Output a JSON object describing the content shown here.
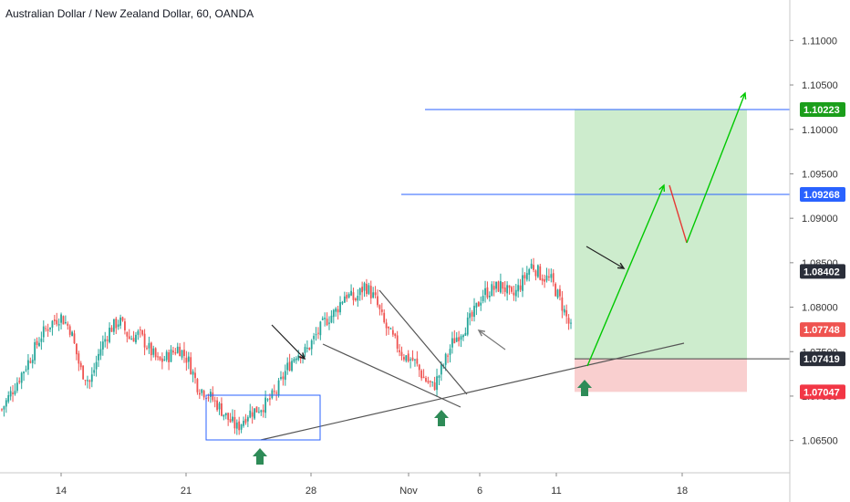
{
  "title": "Australian Dollar / New Zealand Dollar, 60, OANDA",
  "chart_data": {
    "type": "candlestick",
    "symbol": "AUDNZD",
    "timeframe": "60",
    "source": "OANDA",
    "x_tick_labels": [
      "14",
      "21",
      "28",
      "Nov",
      "6",
      "11",
      "18"
    ],
    "y_tick_labels": [
      "1.11000",
      "1.10500",
      "1.10000",
      "1.09500",
      "1.09000",
      "1.08500",
      "1.08000",
      "1.07500",
      "1.07000",
      "1.06500"
    ],
    "ylim": [
      1.0625,
      1.1125
    ],
    "price_labels": [
      {
        "text": "1.10223",
        "value": 1.10223,
        "color": "#1b9e1b"
      },
      {
        "text": "1.09268",
        "value": 1.09268,
        "color": "#2962ff"
      },
      {
        "text": "1.08402",
        "value": 1.08402,
        "color": "#2a2e39"
      },
      {
        "text": "1.07748",
        "value": 1.07748,
        "color": "#ef5350"
      },
      {
        "text": "1.07419",
        "value": 1.07419,
        "color": "#2a2e39"
      },
      {
        "text": "1.07047",
        "value": 1.07047,
        "color": "#f23645"
      }
    ],
    "close_path": [
      1.0685,
      1.0705,
      1.0725,
      1.0745,
      1.0768,
      1.0782,
      1.079,
      1.0775,
      1.073,
      1.0715,
      1.0752,
      1.0775,
      1.0785,
      1.0765,
      1.077,
      1.0753,
      1.0738,
      1.0745,
      1.0755,
      1.074,
      1.071,
      1.0702,
      1.069,
      1.0675,
      1.0664,
      1.068,
      1.0685,
      1.0692,
      1.0705,
      1.073,
      1.0748,
      1.075,
      1.0768,
      1.0785,
      1.0795,
      1.0815,
      1.0808,
      1.0825,
      1.081,
      1.078,
      1.0762,
      1.0745,
      1.074,
      1.072,
      1.071,
      1.0735,
      1.0762,
      1.0775,
      1.079,
      1.0815,
      1.082,
      1.0825,
      1.081,
      1.0828,
      1.0848,
      1.0835,
      1.083,
      1.0805,
      1.0775
    ],
    "long_position": {
      "entry": 1.07419,
      "target": 1.10223,
      "stop": 1.07047
    },
    "horizontal_levels": [
      1.10223,
      1.09268
    ],
    "projection_path": [
      1.07419,
      1.09268,
      1.0869,
      1.10223
    ]
  }
}
